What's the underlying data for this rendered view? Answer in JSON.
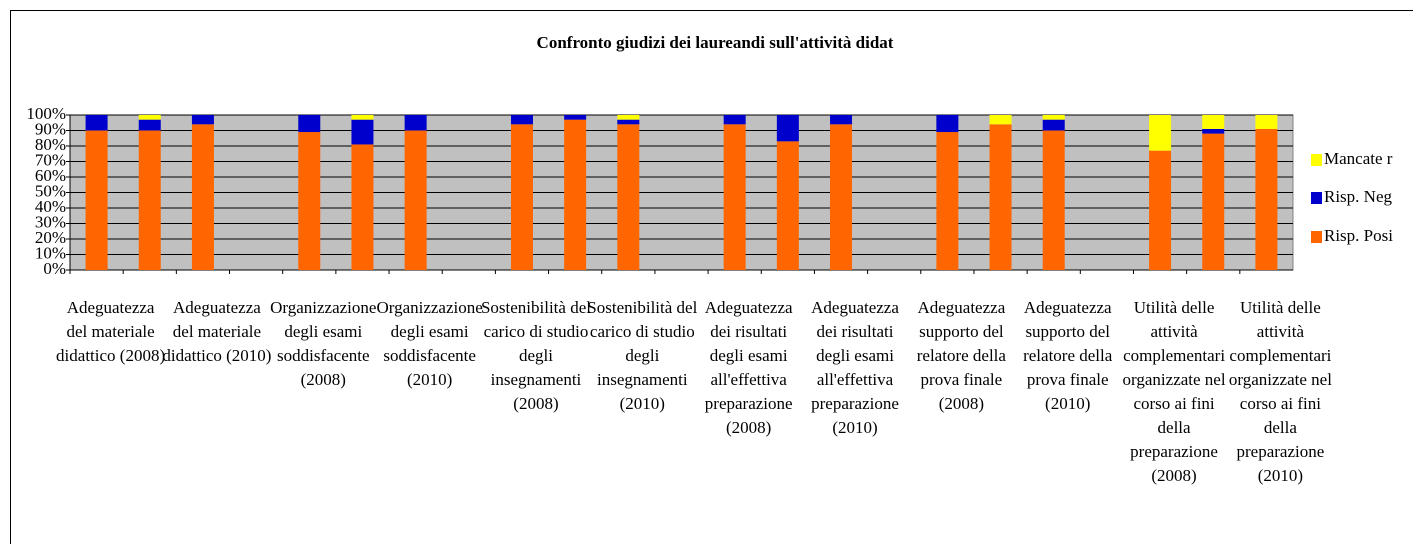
{
  "chart_data": {
    "type": "stacked_bar",
    "title": "Confronto giudizi dei laureandi sull'attività didat",
    "categories": [
      "Adeguatezza del materiale didattico (2008)",
      null,
      "Adeguatezza del materiale didattico (2010)",
      null,
      "Organizzazione degli esami soddisfacente (2008)",
      null,
      "Organizzazione degli esami soddisfacente (2010)",
      null,
      "Sostenibilità del carico di studio degli insegnamenti (2008)",
      null,
      "Sostenibilità del carico di studio degli insegnamenti (2010)",
      null,
      "Adeguatezza dei risultati degli esami all'effettiva preparazione (2008)",
      null,
      "Adeguatezza dei risultati degli esami all'effettiva preparazione (2010)",
      null,
      "Adeguatezza supporto del relatore della prova finale (2008)",
      null,
      "Adeguatezza supporto del relatore della prova finale (2010)",
      null,
      "Utilità delle attività complementari organizzate nel corso ai fini della preparazione (2008)",
      null,
      "Utilità delle attività complementari organizzate nel corso ai fini della preparazione (2010)"
    ],
    "series": [
      {
        "name": "Risp. Posi",
        "color": "#ff6600",
        "values": [
          90,
          90,
          94,
          null,
          89,
          81,
          90,
          null,
          94,
          97,
          94,
          null,
          94,
          83,
          94,
          null,
          89,
          94,
          90,
          null,
          77,
          88,
          91
        ]
      },
      {
        "name": "Risp. Neg",
        "color": "#0000cc",
        "values": [
          10,
          7,
          6,
          null,
          11,
          16,
          10,
          null,
          6,
          3,
          3,
          null,
          6,
          17,
          6,
          null,
          11,
          0,
          7,
          null,
          0,
          3,
          0
        ]
      },
      {
        "name": "Mancate r",
        "color": "#ffff00",
        "values": [
          0,
          3,
          0,
          null,
          0,
          3,
          0,
          null,
          0,
          0,
          3,
          null,
          0,
          0,
          0,
          null,
          0,
          6,
          3,
          null,
          23,
          9,
          9
        ]
      }
    ],
    "ylim": [
      0,
      100
    ],
    "yticks": [
      {
        "value": 0,
        "label": "0%"
      },
      {
        "value": 10,
        "label": "10%"
      },
      {
        "value": 20,
        "label": "20%"
      },
      {
        "value": 30,
        "label": "30%"
      },
      {
        "value": 40,
        "label": "40%"
      },
      {
        "value": 50,
        "label": "50%"
      },
      {
        "value": 60,
        "label": "60%"
      },
      {
        "value": 70,
        "label": "70%"
      },
      {
        "value": 80,
        "label": "80%"
      },
      {
        "value": 90,
        "label": "90%"
      },
      {
        "value": 100,
        "label": "100%"
      }
    ],
    "grid": true,
    "legend": "right"
  }
}
